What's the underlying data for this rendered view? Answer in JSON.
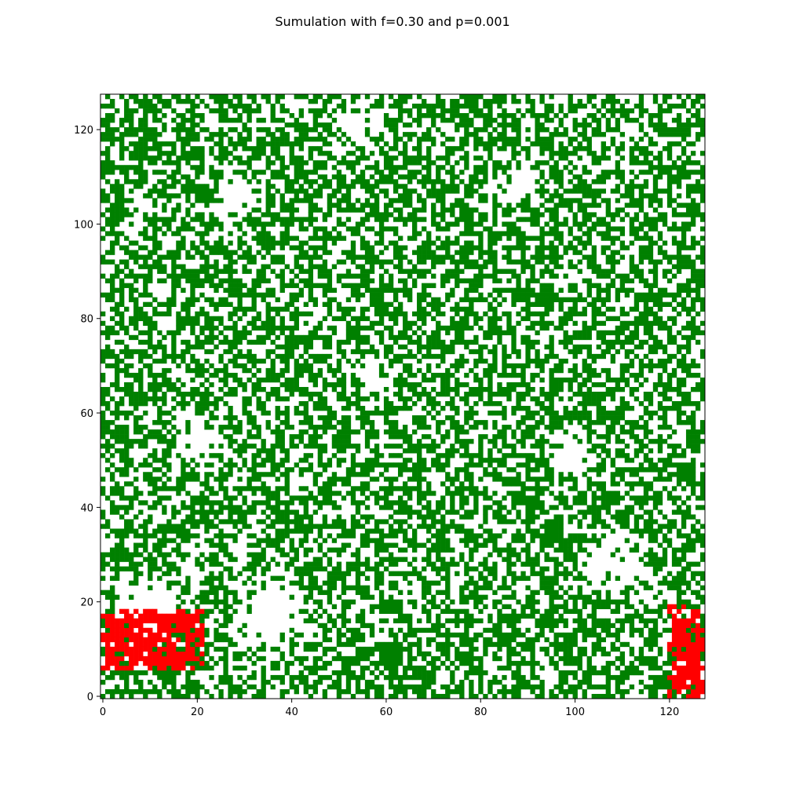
{
  "chart_data": {
    "type": "heatmap",
    "title": "Sumulation with f=0.30 and p=0.001",
    "xlabel": "",
    "ylabel": "",
    "grid_size": 128,
    "xlim": [
      -0.5,
      127.5
    ],
    "ylim": [
      -0.5,
      127.5
    ],
    "origin": "lower",
    "xticks": [
      0,
      20,
      40,
      60,
      80,
      100,
      120
    ],
    "yticks": [
      0,
      20,
      40,
      60,
      80,
      100,
      120
    ],
    "grid": false,
    "states": [
      {
        "value": 0,
        "meaning": "empty",
        "color": "#ffffff"
      },
      {
        "value": 1,
        "meaning": "tree",
        "color": "#008000"
      },
      {
        "value": 2,
        "meaning": "burning",
        "color": "#ff0000"
      }
    ],
    "fill_density_estimate": 0.55,
    "empty_regions": [
      {
        "cx": 10,
        "cy": 18,
        "r": 8
      },
      {
        "cx": 36,
        "cy": 18,
        "r": 10
      },
      {
        "cx": 108,
        "cy": 28,
        "r": 8
      },
      {
        "cx": 20,
        "cy": 55,
        "r": 6
      },
      {
        "cx": 58,
        "cy": 68,
        "r": 5
      },
      {
        "cx": 99,
        "cy": 52,
        "r": 6
      },
      {
        "cx": 28,
        "cy": 106,
        "r": 6
      },
      {
        "cx": 54,
        "cy": 120,
        "r": 7
      },
      {
        "cx": 88,
        "cy": 108,
        "r": 5
      }
    ],
    "dense_regions": [
      {
        "cx": 62,
        "cy": 6,
        "r": 9
      },
      {
        "cx": 92,
        "cy": 84,
        "r": 8
      },
      {
        "cx": 26,
        "cy": 90,
        "r": 8
      }
    ],
    "burning_regions": [
      {
        "x0": 0,
        "x1": 21,
        "y0": 6,
        "y1": 18
      },
      {
        "x0": 120,
        "x1": 127,
        "y0": 0,
        "y1": 19
      }
    ]
  }
}
